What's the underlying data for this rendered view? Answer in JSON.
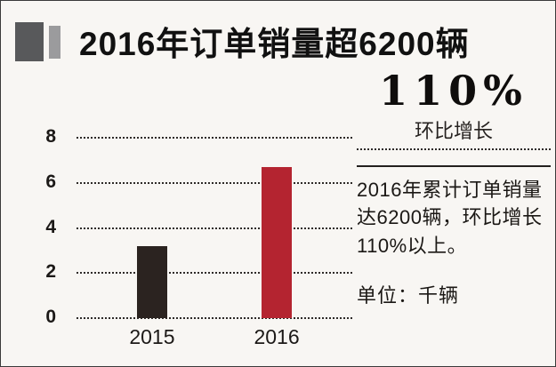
{
  "header": {
    "title": "2016年订单销量超6200辆"
  },
  "highlight": {
    "value": "110%",
    "label": "环比增长"
  },
  "description": {
    "text": "2016年累计订单销量达6200辆，环比增长110%以上。",
    "unit": "单位：千辆"
  },
  "colors": {
    "bar_2015": "#2b2320",
    "bar_2016": "#b42430",
    "decor_dark": "#58595b",
    "decor_light": "#9b9b9d"
  },
  "chart_data": {
    "type": "bar",
    "title": "2016年订单销量超6200辆",
    "categories": [
      "2015",
      "2016"
    ],
    "values": [
      3.2,
      6.7
    ],
    "series_colors": [
      "#2b2320",
      "#b42430"
    ],
    "xlabel": "",
    "ylabel": "",
    "unit": "千辆",
    "ylim": [
      0,
      8
    ],
    "yticks": [
      0,
      2,
      4,
      6,
      8
    ],
    "grid": "horizontal-dotted",
    "legend": "none"
  }
}
